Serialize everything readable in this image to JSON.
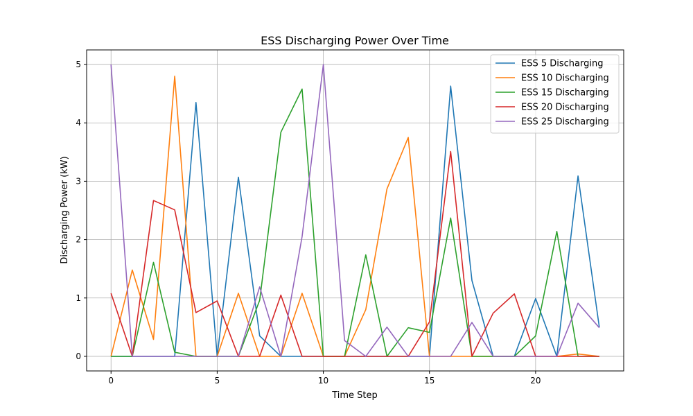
{
  "chart_data": {
    "type": "line",
    "title": "ESS Discharging Power Over Time",
    "xlabel": "Time Step",
    "ylabel": "Discharging Power (kW)",
    "x": [
      0,
      1,
      2,
      3,
      4,
      5,
      6,
      7,
      8,
      9,
      10,
      11,
      12,
      13,
      14,
      15,
      16,
      17,
      18,
      19,
      20,
      21,
      22,
      23
    ],
    "xlim": [
      -1.15,
      24.15
    ],
    "ylim": [
      -0.25,
      5.25
    ],
    "xticks": [
      0,
      5,
      10,
      15,
      20
    ],
    "yticks": [
      0,
      1,
      2,
      3,
      4,
      5
    ],
    "grid": true,
    "legend_position": "top-right",
    "series": [
      {
        "name": "ESS 5 Discharging",
        "color": "#1f77b4",
        "values": [
          0,
          0,
          0,
          0,
          4.35,
          0,
          3.07,
          0.35,
          0,
          0,
          0,
          0,
          0,
          0,
          0,
          0,
          4.63,
          1.3,
          0,
          0,
          0.99,
          0,
          3.09,
          0.5
        ]
      },
      {
        "name": "ESS 10 Discharging",
        "color": "#ff7f0e",
        "values": [
          0,
          1.48,
          0.29,
          4.8,
          0,
          0,
          1.08,
          0,
          0,
          1.08,
          0,
          0,
          0.8,
          2.87,
          3.75,
          0,
          0,
          0,
          0,
          0,
          0,
          0,
          0.04,
          0
        ]
      },
      {
        "name": "ESS 15 Discharging",
        "color": "#2ca02c",
        "values": [
          0,
          0,
          1.61,
          0.07,
          0,
          0,
          0,
          0.96,
          3.84,
          4.58,
          0,
          0,
          1.74,
          0,
          0.49,
          0.41,
          2.37,
          0,
          0,
          0,
          0.35,
          2.14,
          0,
          0
        ]
      },
      {
        "name": "ESS 20 Discharging",
        "color": "#d62728",
        "values": [
          1.08,
          0,
          2.67,
          2.51,
          0.75,
          0.95,
          0,
          0,
          1.05,
          0,
          0,
          0,
          0,
          0,
          0,
          0.59,
          3.51,
          0,
          0.74,
          1.07,
          0,
          0,
          0,
          0
        ]
      },
      {
        "name": "ESS 25 Discharging",
        "color": "#9467bd",
        "values": [
          5,
          0,
          0,
          0,
          0,
          0,
          0,
          1.19,
          0,
          2.05,
          5,
          0.27,
          0,
          0.5,
          0,
          0,
          0,
          0.58,
          0,
          0,
          0,
          0,
          0.91,
          0.49
        ]
      }
    ]
  }
}
